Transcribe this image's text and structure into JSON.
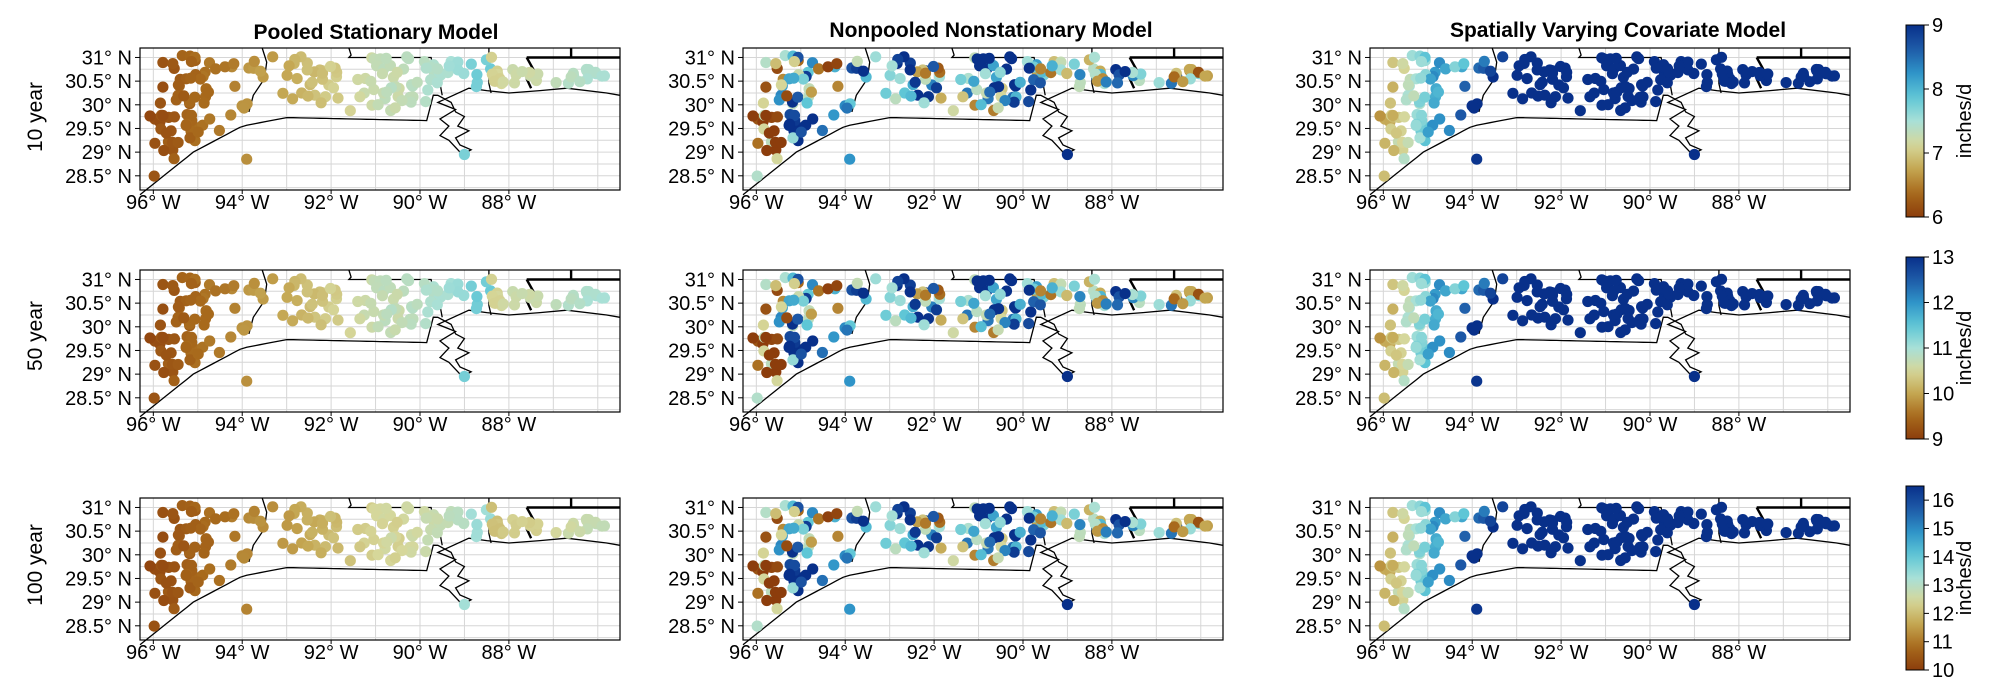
{
  "figure": {
    "col_titles": [
      "Pooled Stationary Model",
      "Nonpooled Nonstationary Model",
      "Spatially Varying Covariate Model"
    ],
    "row_titles": [
      "10 year",
      "50 year",
      "100 year"
    ],
    "lat_ticks": [
      "31° N",
      "30.5° N",
      "30° N",
      "29.5° N",
      "29° N",
      "28.5° N"
    ],
    "lon_ticks": [
      "96° W",
      "94° W",
      "92° W",
      "90° W",
      "88° W"
    ],
    "colorbar_label": "inches/d"
  },
  "colors": {
    "scale": [
      "#8c3d0c",
      "#a86a1c",
      "#c4a651",
      "#d6d79a",
      "#a8e0d7",
      "#5ec6d6",
      "#2f94c8",
      "#1e5aa8",
      "#08308a"
    ],
    "coast": "#000000",
    "grid": "#d6d6d6"
  },
  "chart_data": [
    {
      "type": "scatter",
      "title": "Pooled Stationary Model",
      "row": "10 year",
      "xlabel": "",
      "ylabel": "10 year",
      "xlim": [
        -96.3,
        -85.5
      ],
      "ylim": [
        28.2,
        31.2
      ],
      "colorbar": {
        "label": "inches/d",
        "range": [
          6,
          9
        ],
        "ticks": [
          "6",
          "7",
          "8",
          "9"
        ]
      },
      "field": "pooled",
      "model_range": [
        6.0,
        8.0
      ]
    },
    {
      "type": "scatter",
      "title": "Nonpooled Nonstationary Model",
      "row": "10 year",
      "xlabel": "",
      "ylabel": "",
      "xlim": [
        -96.3,
        -85.5
      ],
      "ylim": [
        28.2,
        31.2
      ],
      "colorbar": {
        "label": "inches/d",
        "range": [
          6,
          9
        ]
      },
      "field": "nonpooled",
      "model_range": [
        6.0,
        9.0
      ]
    },
    {
      "type": "scatter",
      "title": "Spatially Varying Covariate Model",
      "row": "10 year",
      "xlabel": "",
      "ylabel": "",
      "xlim": [
        -96.3,
        -85.5
      ],
      "ylim": [
        28.2,
        31.2
      ],
      "colorbar": {
        "label": "inches/d",
        "range": [
          6,
          9
        ]
      },
      "field": "svc",
      "model_range": [
        6.0,
        9.0
      ]
    },
    {
      "type": "scatter",
      "title": "Pooled Stationary Model",
      "row": "50 year",
      "xlabel": "",
      "ylabel": "50 year",
      "xlim": [
        -96.3,
        -85.5
      ],
      "ylim": [
        28.2,
        31.2
      ],
      "colorbar": {
        "label": "inches/d",
        "range": [
          9,
          13
        ],
        "ticks": [
          "9",
          "10",
          "11",
          "12",
          "13"
        ]
      },
      "field": "pooled",
      "model_range": [
        9.0,
        11.7
      ]
    },
    {
      "type": "scatter",
      "title": "Nonpooled Nonstationary Model",
      "row": "50 year",
      "xlabel": "",
      "ylabel": "",
      "xlim": [
        -96.3,
        -85.5
      ],
      "ylim": [
        28.2,
        31.2
      ],
      "colorbar": {
        "label": "inches/d",
        "range": [
          9,
          13
        ]
      },
      "field": "nonpooled",
      "model_range": [
        9.0,
        13.0
      ]
    },
    {
      "type": "scatter",
      "title": "Spatially Varying Covariate Model",
      "row": "50 year",
      "xlabel": "",
      "ylabel": "",
      "xlim": [
        -96.3,
        -85.5
      ],
      "ylim": [
        28.2,
        31.2
      ],
      "colorbar": {
        "label": "inches/d",
        "range": [
          9,
          13
        ]
      },
      "field": "svc",
      "model_range": [
        9.0,
        13.0
      ]
    },
    {
      "type": "scatter",
      "title": "Pooled Stationary Model",
      "row": "100 year",
      "xlabel": "",
      "ylabel": "100 year",
      "xlim": [
        -96.3,
        -85.5
      ],
      "ylim": [
        28.2,
        31.2
      ],
      "colorbar": {
        "label": "inches/d",
        "range": [
          10,
          16.5
        ],
        "ticks": [
          "10",
          "11",
          "12",
          "13",
          "14",
          "15",
          "16"
        ]
      },
      "field": "pooled",
      "model_range": [
        10.0,
        13.8
      ]
    },
    {
      "type": "scatter",
      "title": "Nonpooled Nonstationary Model",
      "row": "100 year",
      "xlabel": "",
      "ylabel": "",
      "xlim": [
        -96.3,
        -85.5
      ],
      "ylim": [
        28.2,
        31.2
      ],
      "colorbar": {
        "label": "inches/d",
        "range": [
          10,
          16.5
        ]
      },
      "field": "nonpooled",
      "model_range": [
        10.0,
        16.5
      ]
    },
    {
      "type": "scatter",
      "title": "Spatially Varying Covariate Model",
      "row": "100 year",
      "xlabel": "",
      "ylabel": "",
      "xlim": [
        -96.3,
        -85.5
      ],
      "ylim": [
        28.2,
        31.2
      ],
      "colorbar": {
        "label": "inches/d",
        "range": [
          10,
          16.5
        ]
      },
      "field": "svc",
      "model_range": [
        10.0,
        16.5
      ]
    }
  ]
}
